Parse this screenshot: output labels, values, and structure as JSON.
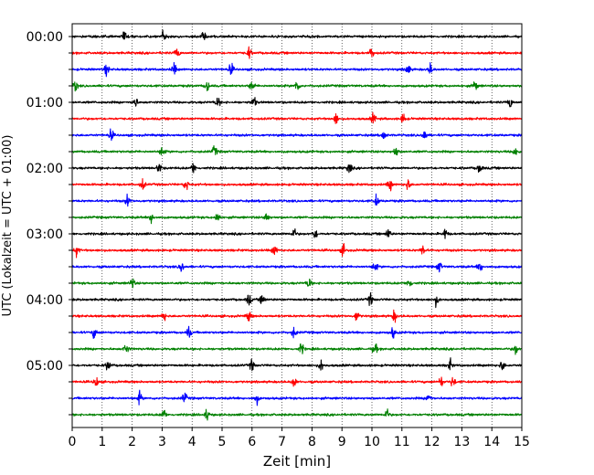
{
  "chart_data": {
    "type": "line",
    "title": "",
    "xlabel": "Zeit  [min]",
    "ylabel": "UTC (Lokalzeit = UTC + 01:00)",
    "xlim": [
      0,
      15
    ],
    "xticks": [
      0,
      1,
      2,
      3,
      4,
      5,
      6,
      7,
      8,
      9,
      10,
      11,
      12,
      13,
      14,
      15
    ],
    "xtick_labels": [
      "0",
      "1",
      "2",
      "3",
      "4",
      "5",
      "6",
      "7",
      "8",
      "9",
      "10",
      "11",
      "12",
      "13",
      "14",
      "15"
    ],
    "ytick_labels": [
      "00:00",
      "01:00",
      "02:00",
      "03:00",
      "04:00",
      "05:00"
    ],
    "trace_interval_minutes": 15,
    "trace_count": 24,
    "trace_colors": [
      "#000000",
      "#ff0000",
      "#0000ff",
      "#008000"
    ],
    "x_grid": "dotted",
    "legend": "none",
    "series": [
      {
        "start": "00:00",
        "bursts": [
          1.75,
          3.05,
          4.4
        ]
      },
      {
        "start": "00:15",
        "bursts": [
          3.5,
          5.9,
          10.0
        ]
      },
      {
        "start": "00:30",
        "bursts": [
          1.15,
          3.4,
          5.3,
          11.2,
          11.95
        ]
      },
      {
        "start": "00:45",
        "bursts": [
          0.1,
          4.5,
          6.0,
          7.5,
          13.45
        ]
      },
      {
        "start": "01:00",
        "bursts": [
          2.1,
          4.85,
          6.05,
          14.6
        ]
      },
      {
        "start": "01:15",
        "bursts": [
          8.8,
          10.05,
          11.05
        ]
      },
      {
        "start": "01:30",
        "bursts": [
          1.3,
          10.4,
          11.75
        ]
      },
      {
        "start": "01:45",
        "bursts": [
          3.0,
          4.75,
          10.8,
          14.8
        ]
      },
      {
        "start": "02:00",
        "bursts": [
          2.9,
          4.05,
          9.25,
          13.6
        ]
      },
      {
        "start": "02:15",
        "bursts": [
          2.35,
          3.8,
          10.6,
          11.2
        ]
      },
      {
        "start": "02:30",
        "bursts": [
          1.85,
          10.15
        ]
      },
      {
        "start": "02:45",
        "bursts": [
          2.65,
          4.85,
          6.5
        ]
      },
      {
        "start": "03:00",
        "bursts": [
          7.4,
          8.1,
          10.55,
          12.45
        ]
      },
      {
        "start": "03:15",
        "bursts": [
          0.15,
          6.75,
          9.05,
          11.7
        ]
      },
      {
        "start": "03:30",
        "bursts": [
          3.65,
          10.1,
          12.25,
          13.6
        ]
      },
      {
        "start": "03:45",
        "bursts": [
          2.0,
          7.9,
          11.25
        ]
      },
      {
        "start": "04:00",
        "bursts": [
          5.9,
          6.35,
          9.95,
          12.15
        ]
      },
      {
        "start": "04:15",
        "bursts": [
          3.05,
          5.9,
          9.5,
          10.75
        ]
      },
      {
        "start": "04:30",
        "bursts": [
          0.75,
          3.9,
          7.4,
          10.7
        ]
      },
      {
        "start": "04:45",
        "bursts": [
          1.8,
          7.65,
          10.1,
          14.8
        ]
      },
      {
        "start": "05:00",
        "bursts": [
          1.2,
          6.0,
          8.3,
          12.6,
          14.35
        ]
      },
      {
        "start": "05:15",
        "bursts": [
          0.8,
          7.4,
          12.3,
          12.7
        ]
      },
      {
        "start": "05:30",
        "bursts": [
          2.25,
          3.75,
          6.15,
          11.9
        ]
      },
      {
        "start": "05:45",
        "bursts": [
          3.05,
          4.5,
          10.5
        ]
      }
    ]
  }
}
